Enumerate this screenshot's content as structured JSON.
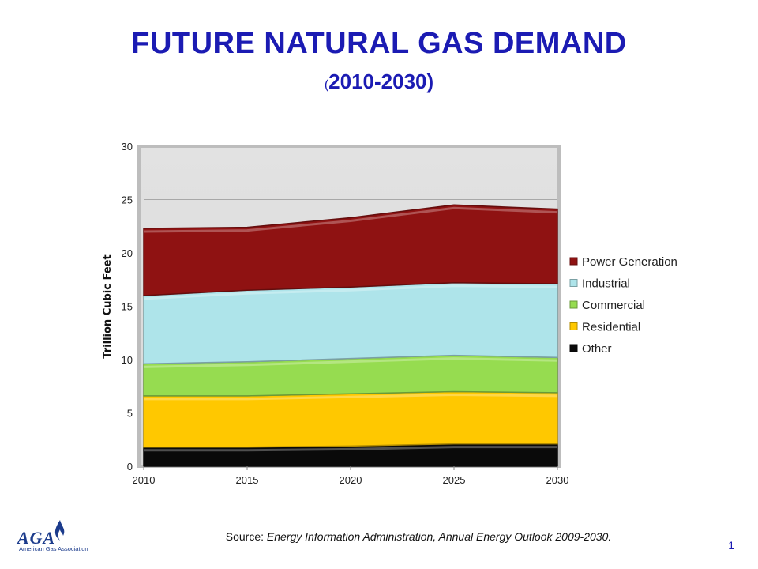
{
  "page": {
    "title": "FUTURE NATURAL GAS DEMAND",
    "subtitle_open": "(",
    "subtitle_years": "2010-2030)",
    "source_label": "Source: ",
    "source_text": "Energy Information Administration, Annual Energy Outlook 2009-2030.",
    "page_number": "1",
    "logo": {
      "wordmark": "AGA",
      "name": "American Gas Association",
      "color": "#1b3b8c"
    }
  },
  "chart_data": {
    "type": "area",
    "stacked": true,
    "x": [
      2010,
      2015,
      2020,
      2025,
      2030
    ],
    "xlim": [
      2010,
      2030
    ],
    "ylim": [
      0,
      30
    ],
    "yticks": [
      0,
      5,
      10,
      15,
      20,
      25,
      30
    ],
    "ylabel": "Trillion Cubic Feet",
    "grid": true,
    "legend_position": "right",
    "series": [
      {
        "name": "Other",
        "values": [
          1.8,
          1.8,
          1.9,
          2.1,
          2.1
        ],
        "color": "#0a0a0a"
      },
      {
        "name": "Residential",
        "values": [
          4.8,
          4.8,
          4.9,
          4.9,
          4.8
        ],
        "color": "#ffc800"
      },
      {
        "name": "Commercial",
        "values": [
          3.0,
          3.2,
          3.3,
          3.4,
          3.3
        ],
        "color": "#96dc50"
      },
      {
        "name": "Industrial",
        "values": [
          6.4,
          6.7,
          6.7,
          6.8,
          6.9
        ],
        "color": "#aee4ea"
      },
      {
        "name": "Power Generation",
        "values": [
          6.3,
          5.9,
          6.5,
          7.3,
          7.0
        ],
        "color": "#8f1212"
      }
    ],
    "legend_order": [
      "Power Generation",
      "Industrial",
      "Commercial",
      "Residential",
      "Other"
    ]
  }
}
